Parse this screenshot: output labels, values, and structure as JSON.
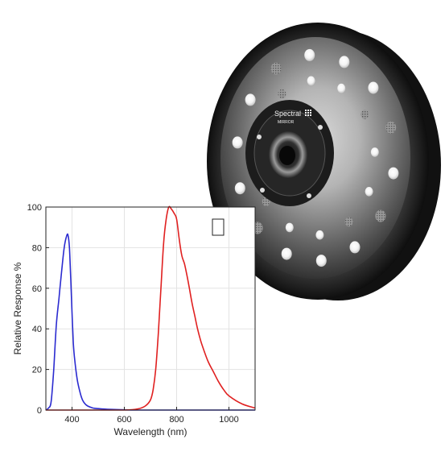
{
  "device": {
    "brand": "Spectral",
    "brand_sub": "MIRROR"
  },
  "chart_data": {
    "type": "line",
    "title": "",
    "xlabel": "Wavelength (nm)",
    "ylabel": "Relative Response %",
    "xlim": [
      300,
      1100
    ],
    "ylim": [
      0,
      100
    ],
    "xticks": [
      "400",
      "600",
      "800",
      "1000"
    ],
    "yticks": [
      "0",
      "20",
      "40",
      "60",
      "80",
      "100"
    ],
    "grid": true,
    "legend": "none",
    "series": [
      {
        "color": "#2b2bd0",
        "x": [
          300,
          310,
          320,
          330,
          340,
          350,
          360,
          370,
          380,
          385,
          390,
          395,
          400,
          405,
          410,
          420,
          430,
          440,
          450,
          460,
          480,
          500,
          520,
          550,
          600,
          650,
          700,
          750,
          800,
          900,
          1000,
          1100
        ],
        "y": [
          0,
          1,
          4,
          20,
          42,
          55,
          68,
          80,
          86,
          86,
          80,
          65,
          48,
          33,
          25,
          15,
          9,
          5,
          3,
          2,
          1,
          0.7,
          0.5,
          0.3,
          0.1,
          0,
          0,
          0,
          0,
          0,
          0,
          0
        ]
      },
      {
        "color": "#e02020",
        "x": [
          300,
          500,
          600,
          650,
          680,
          700,
          710,
          720,
          730,
          740,
          750,
          760,
          770,
          780,
          790,
          800,
          810,
          820,
          830,
          840,
          850,
          860,
          870,
          880,
          890,
          900,
          920,
          940,
          960,
          980,
          1000,
          1050,
          1100
        ],
        "y": [
          0,
          0,
          0,
          0.5,
          2,
          5,
          10,
          20,
          38,
          60,
          82,
          94,
          100,
          99,
          97,
          94,
          84,
          76,
          72,
          66,
          59,
          52,
          46,
          40,
          35,
          31,
          24,
          19,
          14,
          10,
          7,
          3,
          1
        ]
      }
    ]
  }
}
